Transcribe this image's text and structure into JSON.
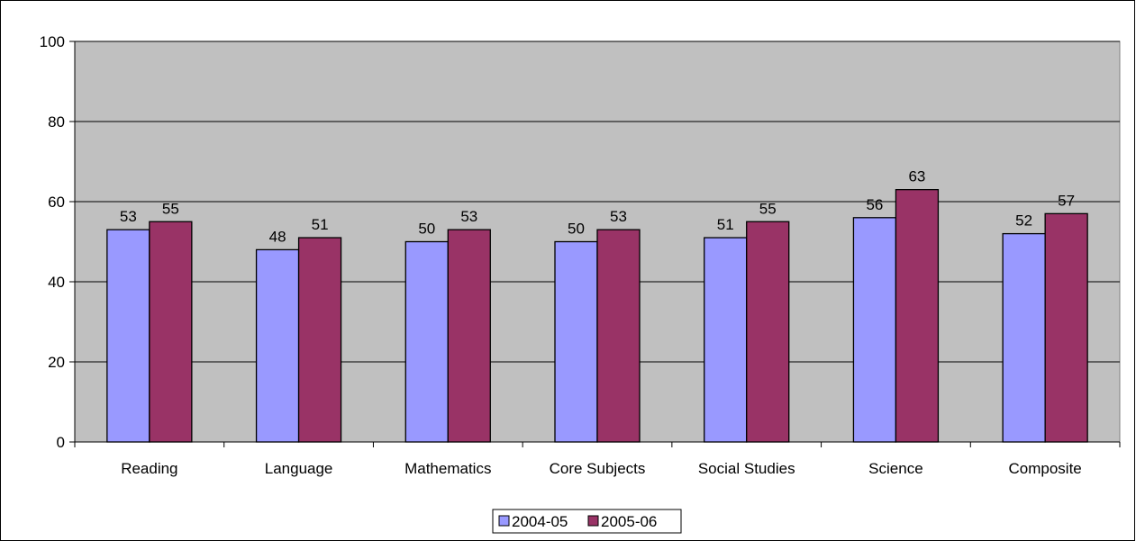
{
  "chart_data": {
    "type": "bar",
    "categories": [
      "Reading",
      "Language",
      "Mathematics",
      "Core Subjects",
      "Social Studies",
      "Science",
      "Composite"
    ],
    "series": [
      {
        "name": "2004-05",
        "values": [
          53,
          48,
          50,
          50,
          51,
          56,
          52
        ],
        "color": "#9999FF"
      },
      {
        "name": "2005-06",
        "values": [
          55,
          51,
          53,
          53,
          55,
          63,
          57
        ],
        "color": "#993366"
      }
    ],
    "ylim": [
      0,
      100
    ],
    "yticks": [
      0,
      20,
      40,
      60,
      80,
      100
    ],
    "grid": true,
    "plot_background": "#C0C0C0",
    "legend_position": "bottom",
    "data_labels": true
  }
}
